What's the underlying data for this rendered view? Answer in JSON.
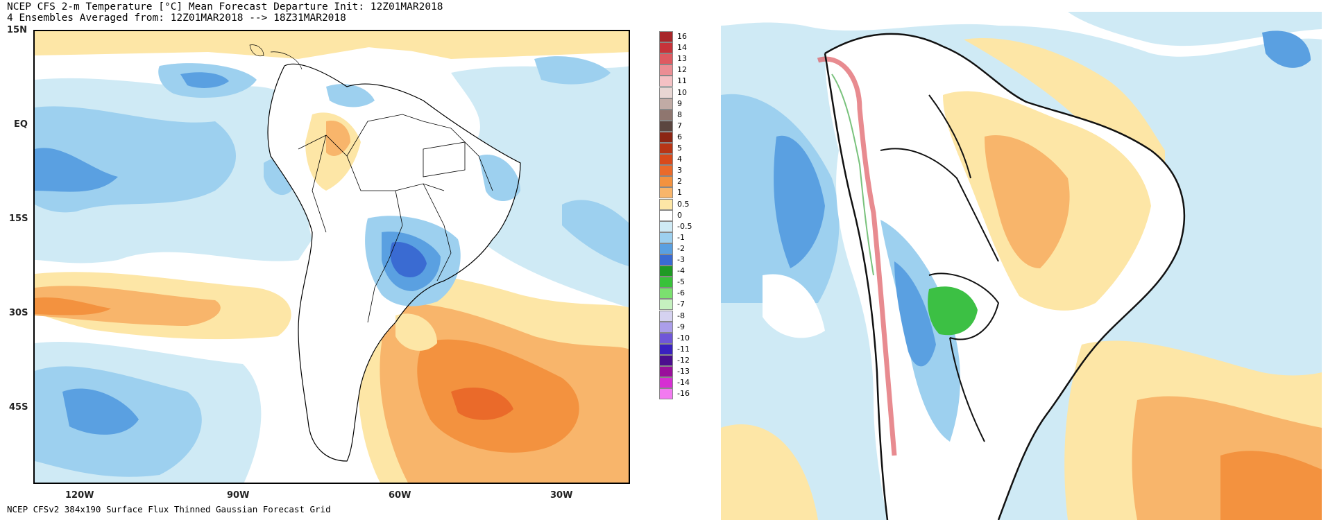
{
  "header": {
    "title_line1": "NCEP CFS 2-m Temperature [°C] Mean Forecast Departure Init: 12Z01MAR2018",
    "title_line2": "4 Ensembles Averaged from: 12Z01MAR2018 --> 18Z31MAR2018"
  },
  "footer": {
    "caption": "NCEP CFSv2 384x190 Surface Flux Thinned Gaussian Forecast Grid"
  },
  "axes": {
    "lat_ticks": [
      "15N",
      "EQ",
      "15S",
      "30S",
      "45S"
    ],
    "lon_ticks": [
      "120W",
      "90W",
      "60W",
      "30W"
    ]
  },
  "colorbar": {
    "labels": [
      "16",
      "14",
      "13",
      "12",
      "11",
      "10",
      "9",
      "8",
      "7",
      "6",
      "5",
      "4",
      "3",
      "2",
      "1",
      "0.5",
      "0",
      "-0.5",
      "-1",
      "-2",
      "-3",
      "-4",
      "-5",
      "-6",
      "-7",
      "-8",
      "-9",
      "-10",
      "-11",
      "-12",
      "-13",
      "-14",
      "-16"
    ],
    "colors": [
      "#a8262a",
      "#c7333a",
      "#de5a61",
      "#eb8e94",
      "#f4c1c4",
      "#e8d6d3",
      "#c1aba5",
      "#8f766f",
      "#5b4640",
      "#8c2513",
      "#b83515",
      "#d84a1b",
      "#ea6a2a",
      "#f3923f",
      "#f8b56b",
      "#fde6a6",
      "#ffffff",
      "#cfeaf5",
      "#9dd0ef",
      "#5aa0e1",
      "#3a6bd2",
      "#1f9a24",
      "#39c23a",
      "#7be06f",
      "#c5f1bf",
      "#d5d2f0",
      "#ab9eea",
      "#6f57d8",
      "#3a21c0",
      "#4c0e8e",
      "#9a0f9b",
      "#d62fd2",
      "#f27af0"
    ]
  },
  "map_colors": {
    "ocean_pos_light": "#fde6a6",
    "ocean_pos_med": "#f8b56b",
    "ocean_pos_strong": "#f3923f",
    "ocean_pos_max": "#ea6a2a",
    "neg_light": "#cfeaf5",
    "neg_med": "#9dd0ef",
    "neg_strong": "#5aa0e1",
    "neg_max": "#3a6bd2",
    "green": "#3cc044"
  }
}
